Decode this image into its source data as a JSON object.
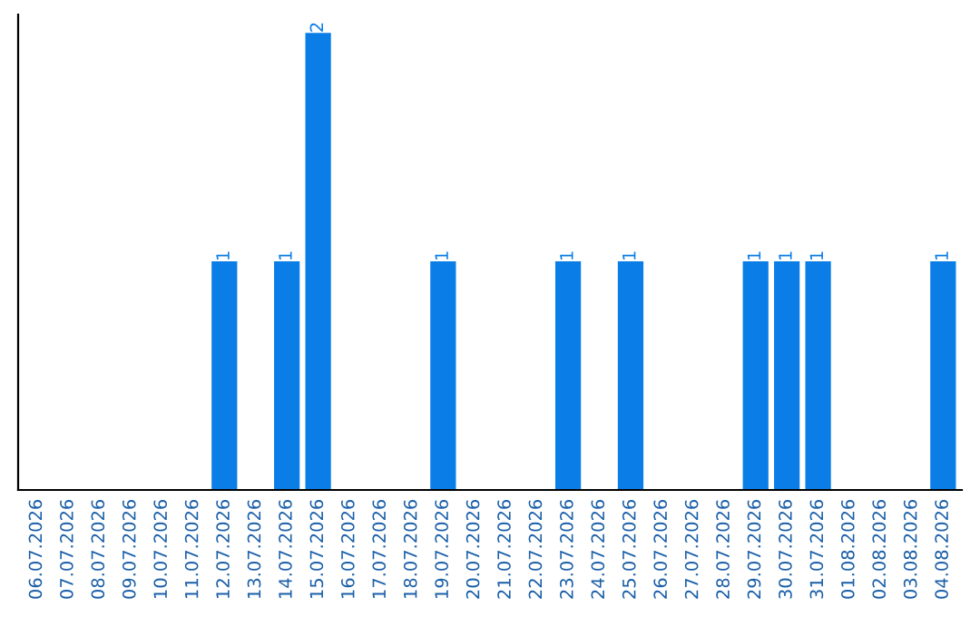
{
  "chart_data": {
    "type": "bar",
    "categories": [
      "06.07.2026",
      "07.07.2026",
      "08.07.2026",
      "09.07.2026",
      "10.07.2026",
      "11.07.2026",
      "12.07.2026",
      "13.07.2026",
      "14.07.2026",
      "15.07.2026",
      "16.07.2026",
      "17.07.2026",
      "18.07.2026",
      "19.07.2026",
      "20.07.2026",
      "21.07.2026",
      "22.07.2026",
      "23.07.2026",
      "24.07.2026",
      "25.07.2026",
      "26.07.2026",
      "27.07.2026",
      "28.07.2026",
      "29.07.2026",
      "30.07.2026",
      "31.07.2026",
      "01.08.2026",
      "02.08.2026",
      "03.08.2026",
      "04.08.2026"
    ],
    "values": [
      0,
      0,
      0,
      0,
      0,
      0,
      1,
      0,
      1,
      2,
      0,
      0,
      0,
      1,
      0,
      0,
      0,
      1,
      0,
      1,
      0,
      0,
      0,
      1,
      1,
      1,
      0,
      0,
      0,
      1
    ],
    "value_labels": [
      null,
      null,
      null,
      null,
      null,
      null,
      "1",
      null,
      "1",
      "2",
      null,
      null,
      null,
      "1",
      null,
      null,
      null,
      "1",
      null,
      "1",
      null,
      null,
      null,
      "1",
      "1",
      "1",
      null,
      null,
      null,
      "1"
    ],
    "color": "#0a7ee6",
    "tick_labels": "x",
    "grid": false,
    "legend": false
  }
}
